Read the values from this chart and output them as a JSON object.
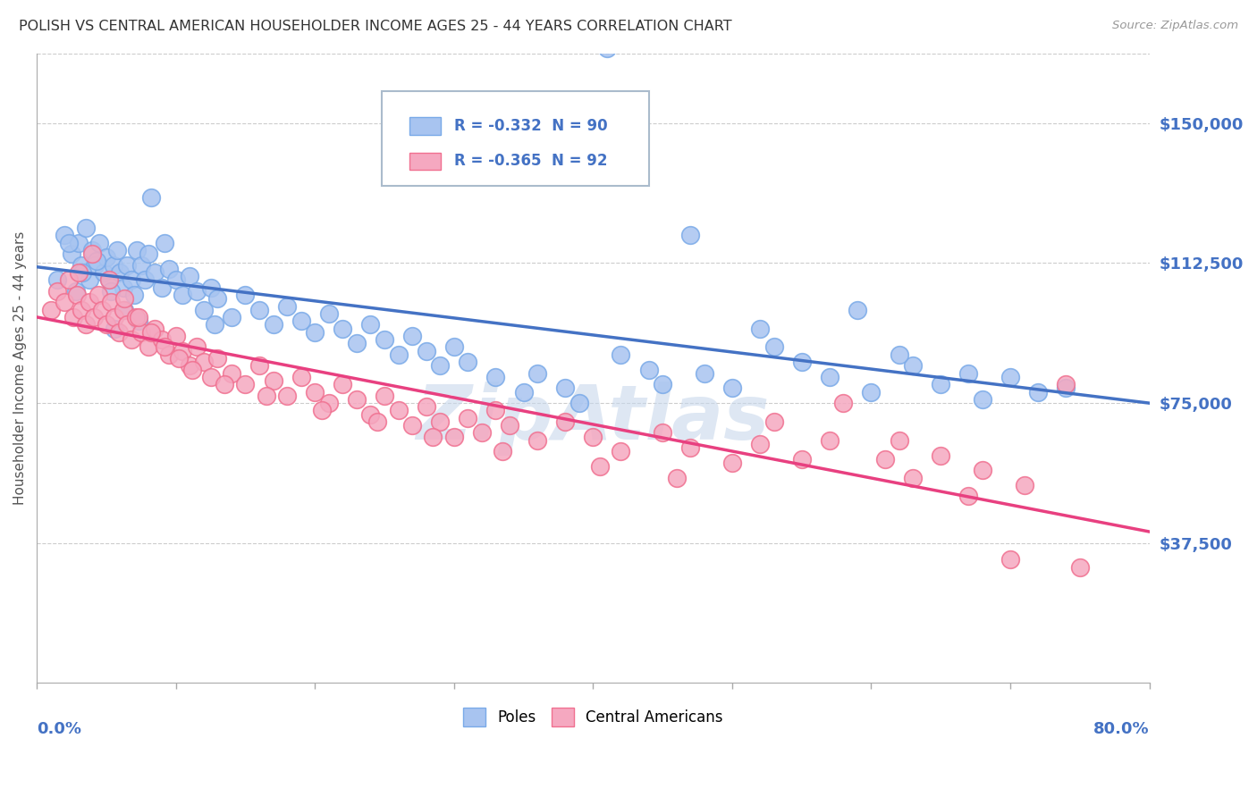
{
  "title": "POLISH VS CENTRAL AMERICAN HOUSEHOLDER INCOME AGES 25 - 44 YEARS CORRELATION CHART",
  "source": "Source: ZipAtlas.com",
  "ylabel": "Householder Income Ages 25 - 44 years",
  "xlim": [
    0.0,
    80.0
  ],
  "ylim": [
    0,
    168750
  ],
  "yticks": [
    0,
    37500,
    75000,
    112500,
    150000
  ],
  "ytick_labels": [
    "",
    "$37,500",
    "$75,000",
    "$112,500",
    "$150,000"
  ],
  "blue_R": -0.332,
  "blue_N": 90,
  "pink_R": -0.365,
  "pink_N": 92,
  "blue_dot_color": "#A8C4F0",
  "blue_dot_edge": "#7AAAE8",
  "pink_dot_color": "#F5A8C0",
  "pink_dot_edge": "#F07090",
  "blue_line_color": "#4472C4",
  "pink_line_color": "#E84080",
  "axis_label_color": "#4472C4",
  "ylabel_color": "#555555",
  "title_color": "#333333",
  "source_color": "#999999",
  "watermark_color": "#C8D8EC",
  "background_color": "#FFFFFF",
  "grid_color": "#CCCCCC",
  "legend_edge_color": "#AABBCC",
  "legend_text_color": "#4472C4",
  "blue_scatter_x": [
    1.5,
    2.0,
    2.5,
    2.8,
    3.0,
    3.2,
    3.5,
    3.8,
    4.0,
    4.2,
    4.5,
    4.8,
    5.0,
    5.2,
    5.5,
    5.8,
    6.0,
    6.2,
    6.5,
    6.8,
    7.0,
    7.2,
    7.5,
    7.8,
    8.0,
    8.5,
    9.0,
    9.5,
    10.0,
    10.5,
    11.0,
    11.5,
    12.0,
    12.5,
    13.0,
    14.0,
    15.0,
    16.0,
    17.0,
    18.0,
    19.0,
    20.0,
    21.0,
    22.0,
    23.0,
    24.0,
    25.0,
    26.0,
    27.0,
    28.0,
    29.0,
    30.0,
    31.0,
    33.0,
    35.0,
    36.0,
    38.0,
    39.0,
    42.0,
    44.0,
    45.0,
    48.0,
    50.0,
    53.0,
    55.0,
    57.0,
    60.0,
    63.0,
    65.0,
    68.0,
    70.0,
    72.0,
    34.0,
    41.0,
    47.0,
    52.0,
    59.0,
    62.0,
    67.0,
    74.0,
    8.2,
    9.2,
    5.3,
    6.3,
    7.3,
    4.3,
    3.3,
    2.3,
    5.6,
    12.8
  ],
  "blue_scatter_y": [
    108000,
    120000,
    115000,
    105000,
    118000,
    112000,
    122000,
    108000,
    116000,
    112000,
    118000,
    110000,
    114000,
    108000,
    112000,
    116000,
    110000,
    106000,
    112000,
    108000,
    104000,
    116000,
    112000,
    108000,
    115000,
    110000,
    106000,
    111000,
    108000,
    104000,
    109000,
    105000,
    100000,
    106000,
    103000,
    98000,
    104000,
    100000,
    96000,
    101000,
    97000,
    94000,
    99000,
    95000,
    91000,
    96000,
    92000,
    88000,
    93000,
    89000,
    85000,
    90000,
    86000,
    82000,
    78000,
    83000,
    79000,
    75000,
    88000,
    84000,
    80000,
    83000,
    79000,
    90000,
    86000,
    82000,
    78000,
    85000,
    80000,
    76000,
    82000,
    78000,
    145000,
    170000,
    120000,
    95000,
    100000,
    88000,
    83000,
    79000,
    130000,
    118000,
    105000,
    100000,
    97000,
    113000,
    110000,
    118000,
    95000,
    96000
  ],
  "pink_scatter_x": [
    1.0,
    1.5,
    2.0,
    2.3,
    2.6,
    2.9,
    3.2,
    3.5,
    3.8,
    4.1,
    4.4,
    4.7,
    5.0,
    5.3,
    5.6,
    5.9,
    6.2,
    6.5,
    6.8,
    7.1,
    7.5,
    8.0,
    8.5,
    9.0,
    9.5,
    10.0,
    10.5,
    11.0,
    11.5,
    12.0,
    12.5,
    13.0,
    14.0,
    15.0,
    16.0,
    17.0,
    18.0,
    19.0,
    20.0,
    21.0,
    22.0,
    23.0,
    24.0,
    25.0,
    26.0,
    27.0,
    28.0,
    29.0,
    30.0,
    31.0,
    32.0,
    33.0,
    34.0,
    36.0,
    38.0,
    40.0,
    42.0,
    45.0,
    47.0,
    50.0,
    52.0,
    55.0,
    58.0,
    62.0,
    65.0,
    68.0,
    71.0,
    74.0,
    3.0,
    4.0,
    5.2,
    6.3,
    7.3,
    8.2,
    9.2,
    10.2,
    11.2,
    13.5,
    16.5,
    20.5,
    24.5,
    28.5,
    33.5,
    40.5,
    46.0,
    53.0,
    57.0,
    61.0,
    63.0,
    67.0,
    70.0,
    75.0
  ],
  "pink_scatter_y": [
    100000,
    105000,
    102000,
    108000,
    98000,
    104000,
    100000,
    96000,
    102000,
    98000,
    104000,
    100000,
    96000,
    102000,
    98000,
    94000,
    100000,
    96000,
    92000,
    98000,
    94000,
    90000,
    95000,
    92000,
    88000,
    93000,
    89000,
    85000,
    90000,
    86000,
    82000,
    87000,
    83000,
    80000,
    85000,
    81000,
    77000,
    82000,
    78000,
    75000,
    80000,
    76000,
    72000,
    77000,
    73000,
    69000,
    74000,
    70000,
    66000,
    71000,
    67000,
    73000,
    69000,
    65000,
    70000,
    66000,
    62000,
    67000,
    63000,
    59000,
    64000,
    60000,
    75000,
    65000,
    61000,
    57000,
    53000,
    80000,
    110000,
    115000,
    108000,
    103000,
    98000,
    94000,
    90000,
    87000,
    84000,
    80000,
    77000,
    73000,
    70000,
    66000,
    62000,
    58000,
    55000,
    70000,
    65000,
    60000,
    55000,
    50000,
    33000,
    31000
  ]
}
